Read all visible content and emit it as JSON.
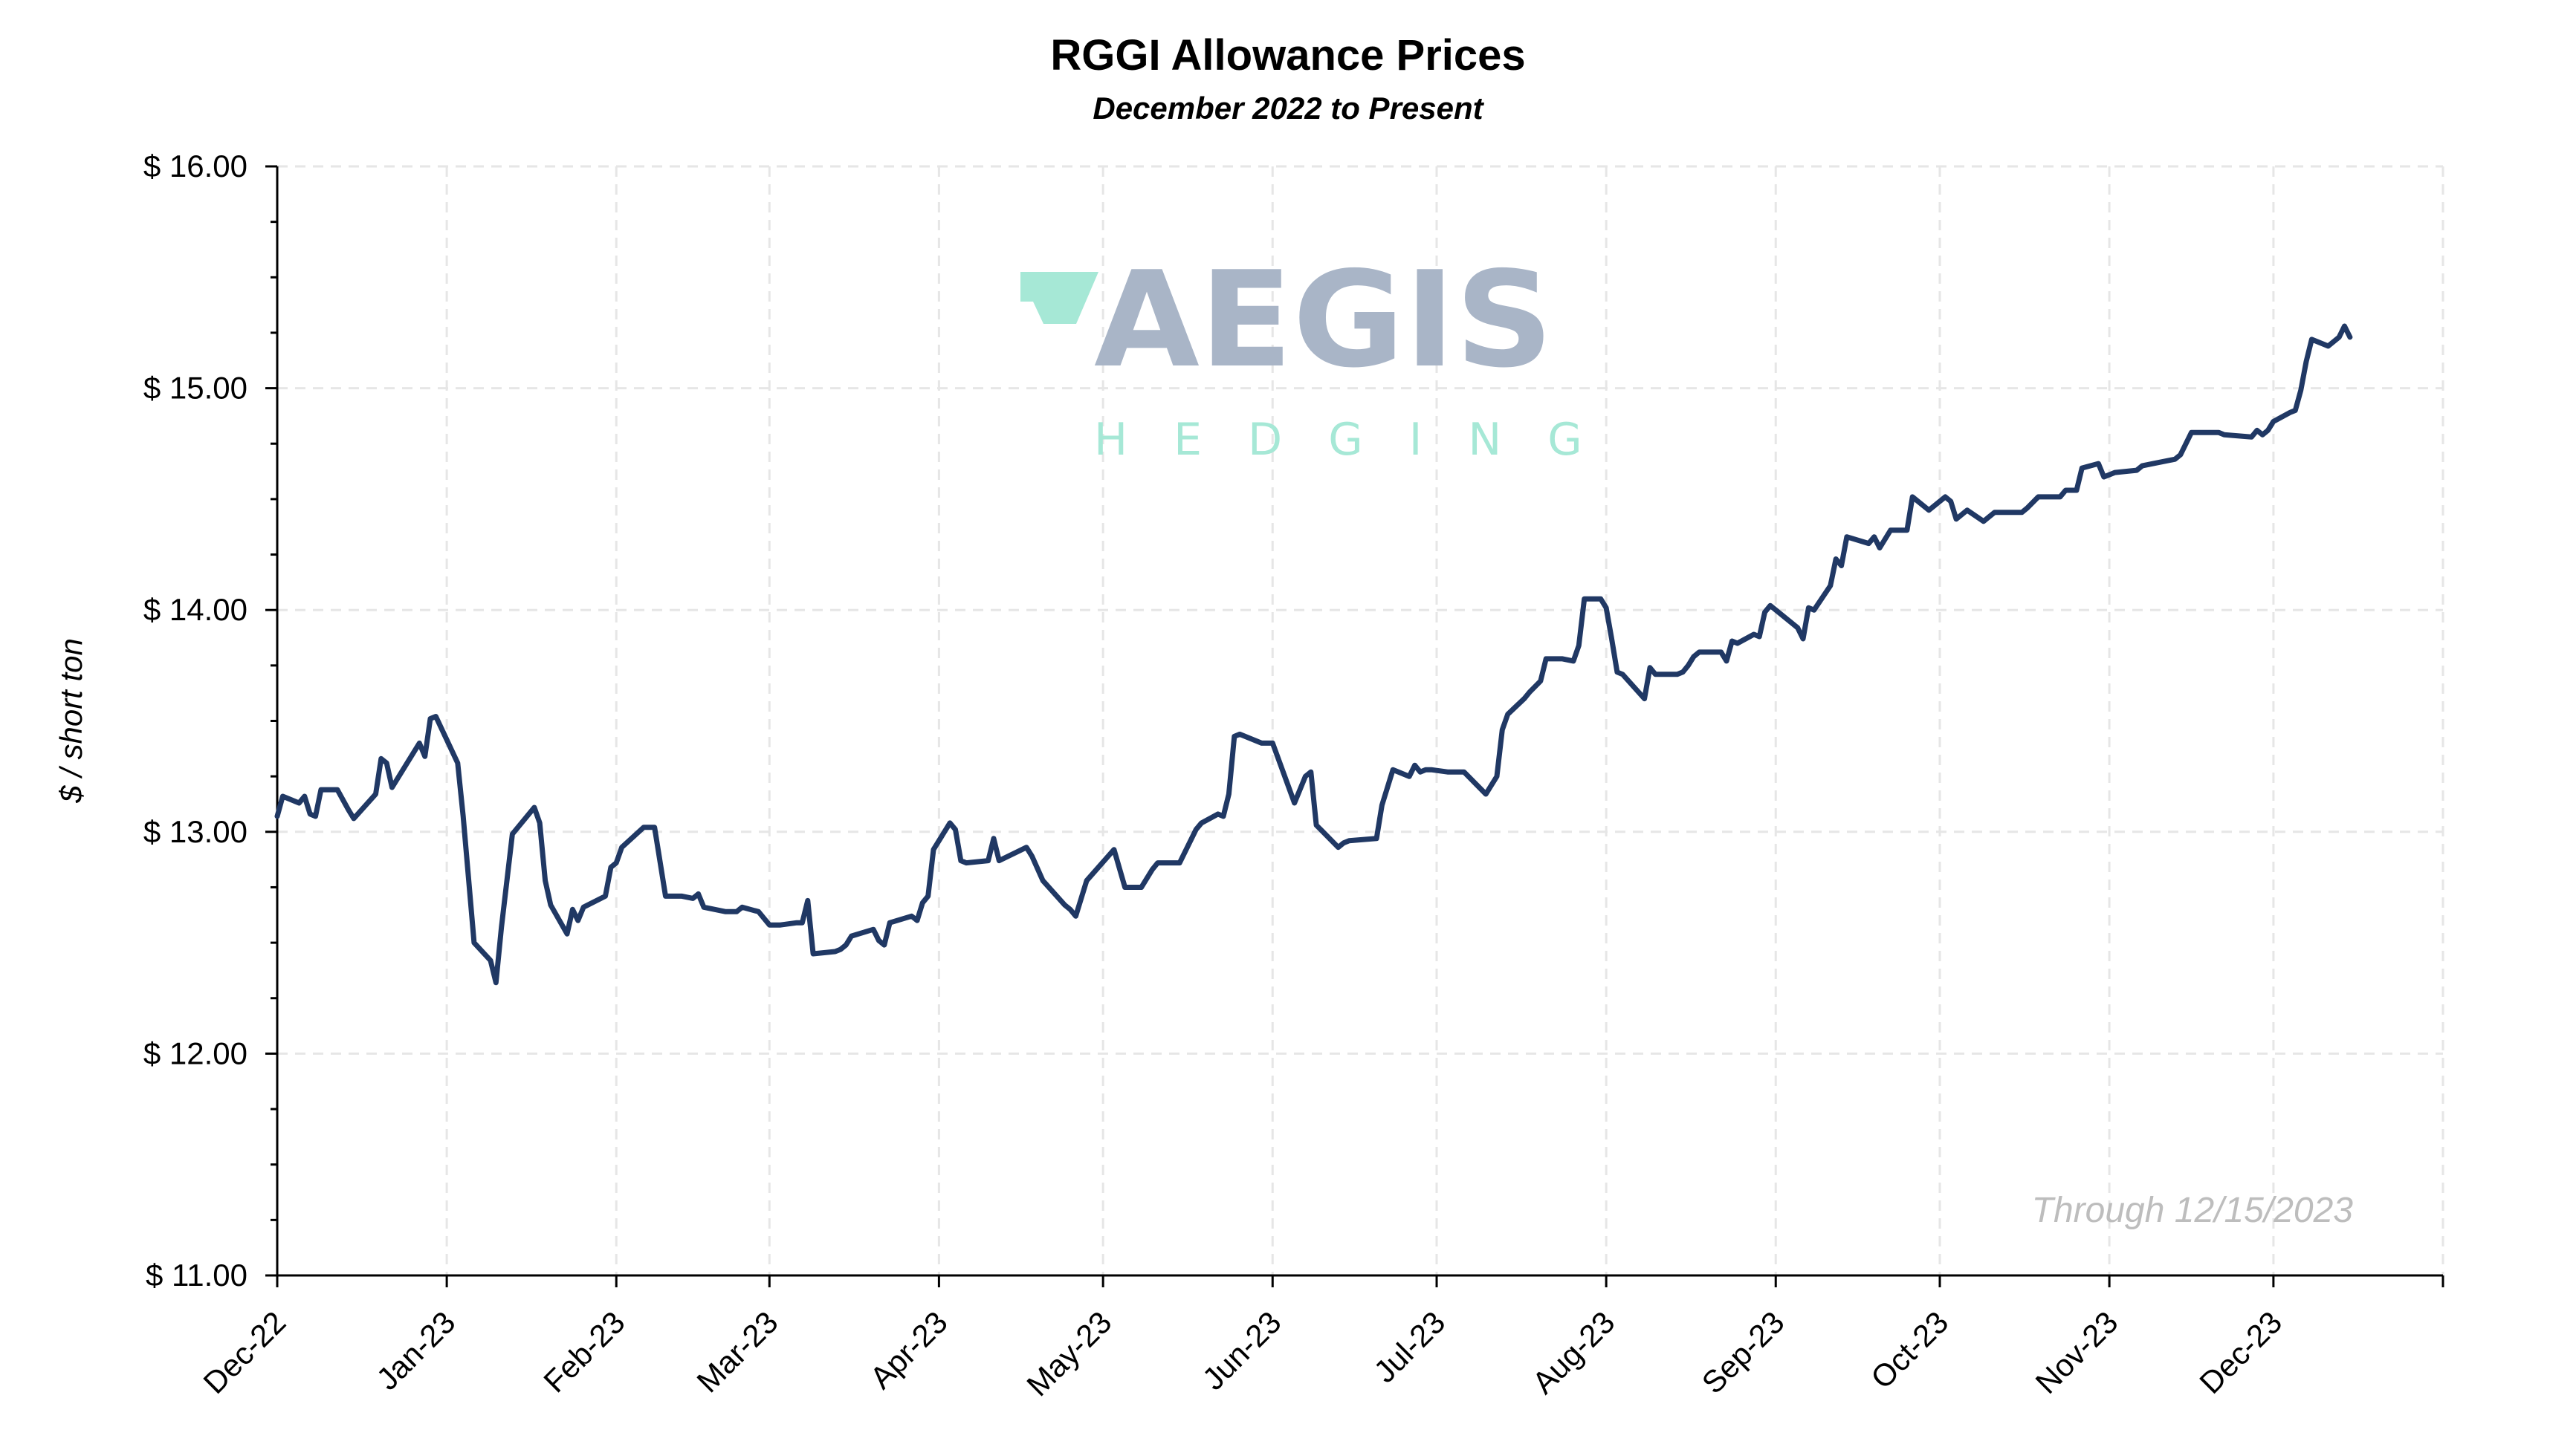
{
  "chart_data": {
    "type": "line",
    "title": "RGGI Allowance Prices",
    "subtitle": "December 2022 to Present",
    "xlabel": "",
    "ylabel": "$ / short ton",
    "ylim": [
      11,
      16
    ],
    "xlim": [
      "2022-12-01",
      "2024-01-01"
    ],
    "yticks": [
      "$ 11.00",
      "$ 12.00",
      "$ 13.00",
      "$ 14.00",
      "$ 15.00",
      "$ 16.00"
    ],
    "xticks": [
      "Dec-22",
      "Jan-23",
      "Feb-23",
      "Mar-23",
      "Apr-23",
      "May-23",
      "Jun-23",
      "Jul-23",
      "Aug-23",
      "Sep-23",
      "Oct-23",
      "Nov-23",
      "Dec-23"
    ],
    "grid": true,
    "annotation": "Through 12/15/2023",
    "line_color": "#203864",
    "series": [
      {
        "x": [
          "2022-12-01",
          "2022-12-02",
          "2022-12-05",
          "2022-12-06",
          "2022-12-07",
          "2022-12-08",
          "2022-12-09",
          "2022-12-12",
          "2022-12-14",
          "2022-12-15",
          "2022-12-19",
          "2022-12-20",
          "2022-12-21",
          "2022-12-22",
          "2022-12-27",
          "2022-12-28",
          "2022-12-29",
          "2022-12-30",
          "2023-01-03",
          "2023-01-04",
          "2023-01-06",
          "2023-01-09",
          "2023-01-10",
          "2023-01-11",
          "2023-01-13",
          "2023-01-17",
          "2023-01-18",
          "2023-01-19",
          "2023-01-20",
          "2023-01-23",
          "2023-01-24",
          "2023-01-25",
          "2023-01-26",
          "2023-01-30",
          "2023-01-31",
          "2023-02-01",
          "2023-02-02",
          "2023-02-06",
          "2023-02-08",
          "2023-02-10",
          "2023-02-13",
          "2023-02-15",
          "2023-02-16",
          "2023-02-17",
          "2023-02-21",
          "2023-02-23",
          "2023-02-24",
          "2023-02-27",
          "2023-03-01",
          "2023-03-03",
          "2023-03-06",
          "2023-03-07",
          "2023-03-08",
          "2023-03-09",
          "2023-03-13",
          "2023-03-14",
          "2023-03-15",
          "2023-03-16",
          "2023-03-20",
          "2023-03-21",
          "2023-03-22",
          "2023-03-23",
          "2023-03-27",
          "2023-03-28",
          "2023-03-29",
          "2023-03-30",
          "2023-03-31",
          "2023-04-03",
          "2023-04-04",
          "2023-04-05",
          "2023-04-06",
          "2023-04-10",
          "2023-04-11",
          "2023-04-12",
          "2023-04-17",
          "2023-04-18",
          "2023-04-20",
          "2023-04-24",
          "2023-04-25",
          "2023-04-26",
          "2023-04-28",
          "2023-05-03",
          "2023-05-05",
          "2023-05-08",
          "2023-05-10",
          "2023-05-11",
          "2023-05-15",
          "2023-05-16",
          "2023-05-18",
          "2023-05-19",
          "2023-05-22",
          "2023-05-23",
          "2023-05-24",
          "2023-05-25",
          "2023-05-26",
          "2023-05-30",
          "2023-06-01",
          "2023-06-05",
          "2023-06-07",
          "2023-06-08",
          "2023-06-09",
          "2023-06-13",
          "2023-06-14",
          "2023-06-15",
          "2023-06-20",
          "2023-06-21",
          "2023-06-23",
          "2023-06-26",
          "2023-06-27",
          "2023-06-28",
          "2023-06-29",
          "2023-06-30",
          "2023-07-03",
          "2023-07-06",
          "2023-07-10",
          "2023-07-12",
          "2023-07-13",
          "2023-07-14",
          "2023-07-17",
          "2023-07-18",
          "2023-07-20",
          "2023-07-21",
          "2023-07-24",
          "2023-07-26",
          "2023-07-27",
          "2023-07-28",
          "2023-07-31",
          "2023-08-01",
          "2023-08-02",
          "2023-08-03",
          "2023-08-04",
          "2023-08-08",
          "2023-08-09",
          "2023-08-10",
          "2023-08-14",
          "2023-08-15",
          "2023-08-16",
          "2023-08-17",
          "2023-08-18",
          "2023-08-22",
          "2023-08-23",
          "2023-08-24",
          "2023-08-25",
          "2023-08-28",
          "2023-08-29",
          "2023-08-30",
          "2023-08-31",
          "2023-09-05",
          "2023-09-06",
          "2023-09-07",
          "2023-09-08",
          "2023-09-11",
          "2023-09-12",
          "2023-09-13",
          "2023-09-14",
          "2023-09-18",
          "2023-09-19",
          "2023-09-20",
          "2023-09-22",
          "2023-09-25",
          "2023-09-26",
          "2023-09-27",
          "2023-09-29",
          "2023-10-02",
          "2023-10-03",
          "2023-10-04",
          "2023-10-06",
          "2023-10-09",
          "2023-10-10",
          "2023-10-11",
          "2023-10-16",
          "2023-10-17",
          "2023-10-19",
          "2023-10-23",
          "2023-10-24",
          "2023-10-26",
          "2023-10-27",
          "2023-10-30",
          "2023-10-31",
          "2023-11-01",
          "2023-11-02",
          "2023-11-06",
          "2023-11-07",
          "2023-11-09",
          "2023-11-13",
          "2023-11-14",
          "2023-11-16",
          "2023-11-17",
          "2023-11-20",
          "2023-11-21",
          "2023-11-22",
          "2023-11-27",
          "2023-11-28",
          "2023-11-29",
          "2023-11-30",
          "2023-12-01",
          "2023-12-04",
          "2023-12-05",
          "2023-12-06",
          "2023-12-07",
          "2023-12-08",
          "2023-12-11",
          "2023-12-13",
          "2023-12-14",
          "2023-12-15"
        ],
        "y": [
          13.07,
          13.16,
          13.13,
          13.16,
          13.08,
          13.07,
          13.19,
          13.19,
          13.1,
          13.06,
          13.17,
          13.33,
          13.31,
          13.2,
          13.4,
          13.34,
          13.51,
          13.52,
          13.31,
          13.07,
          12.5,
          12.42,
          12.32,
          12.57,
          12.99,
          13.11,
          13.04,
          12.78,
          12.67,
          12.54,
          12.65,
          12.6,
          12.66,
          12.71,
          12.84,
          12.86,
          12.93,
          13.02,
          13.02,
          12.71,
          12.71,
          12.7,
          12.72,
          12.66,
          12.64,
          12.64,
          12.66,
          12.64,
          12.58,
          12.58,
          12.59,
          12.59,
          12.69,
          12.45,
          12.46,
          12.47,
          12.49,
          12.53,
          12.56,
          12.51,
          12.49,
          12.59,
          12.62,
          12.6,
          12.68,
          12.71,
          12.92,
          13.04,
          13.01,
          12.87,
          12.86,
          12.87,
          12.97,
          12.87,
          12.93,
          12.89,
          12.78,
          12.67,
          12.65,
          12.62,
          12.78,
          12.92,
          12.75,
          12.75,
          12.83,
          12.86,
          12.86,
          12.91,
          13.01,
          13.04,
          13.08,
          13.07,
          13.17,
          13.43,
          13.44,
          13.4,
          13.4,
          13.13,
          13.25,
          13.27,
          13.03,
          12.93,
          12.95,
          12.96,
          12.97,
          13.12,
          13.28,
          13.25,
          13.3,
          13.27,
          13.28,
          13.28,
          13.27,
          13.27,
          13.17,
          13.25,
          13.46,
          13.53,
          13.6,
          13.63,
          13.68,
          13.78,
          13.78,
          13.77,
          13.84,
          14.05,
          14.05,
          14.01,
          13.87,
          13.72,
          13.71,
          13.6,
          13.74,
          13.71,
          13.71,
          13.72,
          13.75,
          13.79,
          13.81,
          13.81,
          13.77,
          13.86,
          13.85,
          13.89,
          13.88,
          13.99,
          14.02,
          13.92,
          13.87,
          14.01,
          14.0,
          14.11,
          14.23,
          14.2,
          14.33,
          14.3,
          14.33,
          14.28,
          14.36,
          14.36,
          14.51,
          14.49,
          14.45,
          14.51,
          14.49,
          14.41,
          14.45,
          14.4,
          14.42,
          14.44,
          14.44,
          14.46,
          14.51,
          14.51,
          14.54,
          14.54,
          14.64,
          14.66,
          14.6,
          14.61,
          14.62,
          14.63,
          14.65,
          14.66,
          14.68,
          14.7,
          14.8,
          14.8,
          14.8,
          14.8,
          14.79,
          14.78,
          14.81,
          14.79,
          14.81,
          14.85,
          14.89,
          14.9,
          14.99,
          15.12,
          15.22,
          15.19,
          15.23,
          15.28,
          15.23
        ]
      }
    ]
  },
  "watermark": {
    "brand": "AEGIS",
    "tagline": "HEDGING",
    "brand_color": "#a9b5c7",
    "accent_color": "#a6e8d6"
  }
}
